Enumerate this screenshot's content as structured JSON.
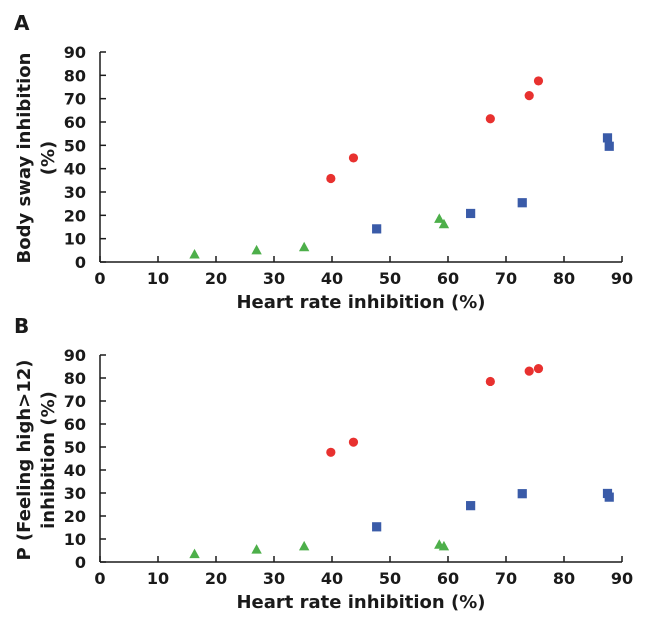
{
  "chart_data": [
    {
      "type": "scatter",
      "panel": "A",
      "xlabel": "Heart rate inhibition (%)",
      "ylabel": [
        "Body sway inhibition",
        "(%)"
      ],
      "xlim": [
        0,
        90
      ],
      "ylim": [
        0,
        90
      ],
      "xticks": [
        "0",
        "10",
        "20",
        "30",
        "40",
        "50",
        "60",
        "70",
        "80",
        "90"
      ],
      "yticks": [
        "0",
        "10",
        "20",
        "30",
        "40",
        "50",
        "60",
        "70",
        "80",
        "90"
      ],
      "grid": false,
      "series": [
        {
          "marker": "triangle",
          "color": "#4daf4a",
          "points": [
            [
              16.3,
              3.2
            ],
            [
              27.0,
              5.0
            ],
            [
              35.2,
              6.3
            ],
            [
              58.5,
              18.5
            ],
            [
              59.3,
              16.2
            ]
          ]
        },
        {
          "marker": "square",
          "color": "#3a5ba8",
          "points": [
            [
              47.7,
              14.2
            ],
            [
              63.9,
              20.8
            ],
            [
              72.8,
              25.4
            ],
            [
              87.5,
              53.2
            ],
            [
              87.8,
              49.6
            ]
          ]
        },
        {
          "marker": "circle",
          "color": "#e8312f",
          "points": [
            [
              39.8,
              35.8
            ],
            [
              43.7,
              44.6
            ],
            [
              67.3,
              61.4
            ],
            [
              74.0,
              71.3
            ],
            [
              75.6,
              77.6
            ]
          ]
        }
      ]
    },
    {
      "type": "scatter",
      "panel": "B",
      "xlabel": "Heart rate inhibition (%)",
      "ylabel": [
        "P (Feeling high>12)",
        "inhibition (%)"
      ],
      "xlim": [
        0,
        90
      ],
      "ylim": [
        0,
        90
      ],
      "xticks": [
        "0",
        "10",
        "20",
        "30",
        "40",
        "50",
        "60",
        "70",
        "80",
        "90"
      ],
      "yticks": [
        "0",
        "10",
        "20",
        "30",
        "40",
        "50",
        "60",
        "70",
        "80",
        "90"
      ],
      "grid": false,
      "series": [
        {
          "marker": "triangle",
          "color": "#4daf4a",
          "points": [
            [
              16.3,
              3.4
            ],
            [
              27.0,
              5.4
            ],
            [
              35.2,
              6.8
            ],
            [
              58.5,
              7.5
            ],
            [
              59.3,
              6.8
            ]
          ]
        },
        {
          "marker": "square",
          "color": "#3a5ba8",
          "points": [
            [
              47.7,
              15.3
            ],
            [
              63.9,
              24.5
            ],
            [
              72.8,
              29.7
            ],
            [
              87.5,
              29.8
            ],
            [
              87.8,
              28.2
            ]
          ]
        },
        {
          "marker": "circle",
          "color": "#e8312f",
          "points": [
            [
              39.8,
              47.7
            ],
            [
              43.7,
              52.1
            ],
            [
              67.3,
              78.5
            ],
            [
              74.0,
              83.0
            ],
            [
              75.6,
              84.1
            ]
          ]
        }
      ]
    }
  ]
}
